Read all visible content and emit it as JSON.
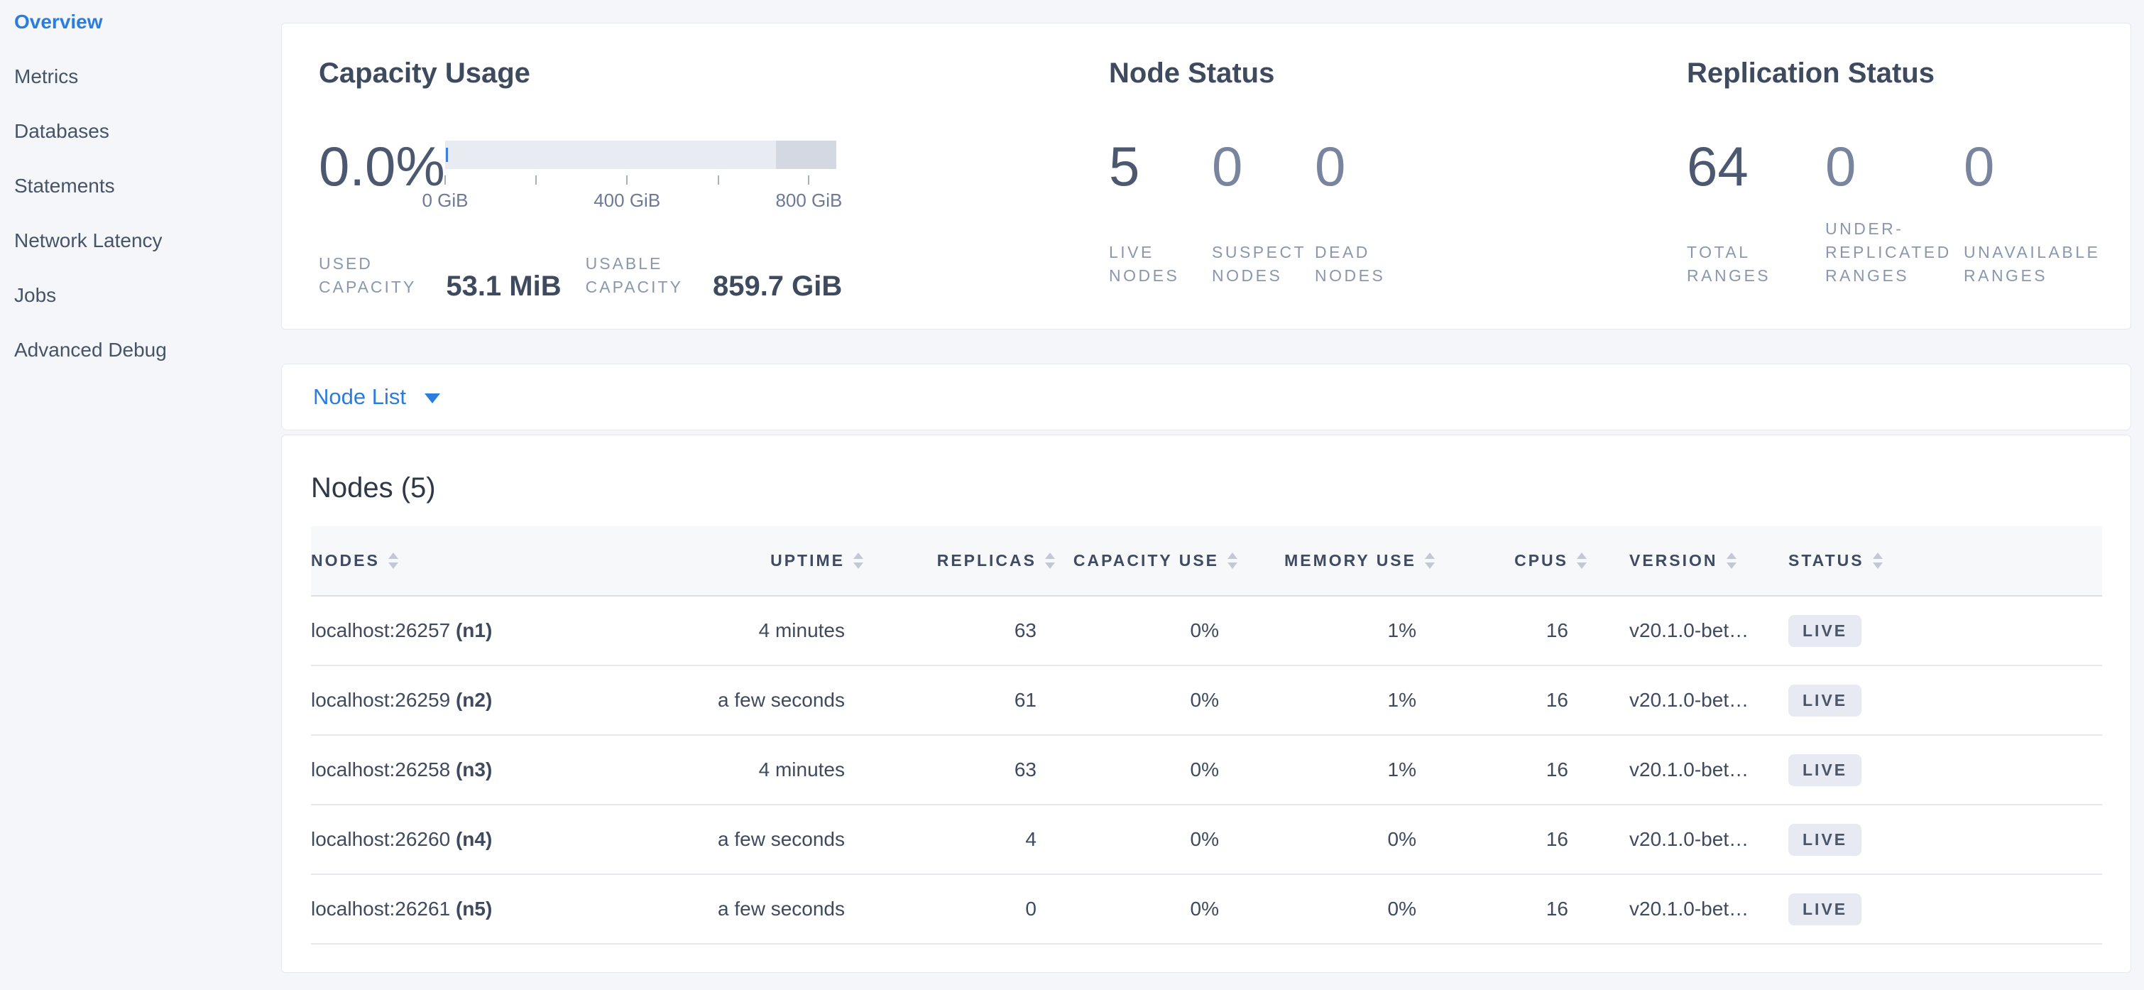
{
  "colors": {
    "accent_blue": "#2b7ce0",
    "page_bg": "#f4f6fa",
    "card_bg": "#ffffff",
    "dark_text": "#3e4a5e",
    "muted_number": "#79849e",
    "label_gray": "#8b97ad",
    "badge_bg": "#e7eaf2",
    "gauge_track": "#e8ebf1",
    "gauge_track_dark": "#d4d8e2",
    "gauge_used_marker": "#3e7ee0"
  },
  "sidebar": {
    "items": [
      {
        "label": "Overview",
        "active": true
      },
      {
        "label": "Metrics",
        "active": false
      },
      {
        "label": "Databases",
        "active": false
      },
      {
        "label": "Statements",
        "active": false
      },
      {
        "label": "Network Latency",
        "active": false
      },
      {
        "label": "Jobs",
        "active": false
      },
      {
        "label": "Advanced Debug",
        "active": false
      }
    ]
  },
  "summary": {
    "capacity_usage": {
      "title": "Capacity Usage",
      "percent": "0.0%",
      "gauge": {
        "ticks": [
          {
            "label": "0 GiB",
            "pos": 0
          },
          {
            "label": "",
            "pos": 23.3
          },
          {
            "label": "400 GiB",
            "pos": 46.5
          },
          {
            "label": "",
            "pos": 69.8
          },
          {
            "label": "800 GiB",
            "pos": 93
          }
        ],
        "dark_segment_start_pct": 84.5,
        "used_marker_pct": 0
      },
      "stats": [
        {
          "label_lines": [
            "USED",
            "CAPACITY"
          ],
          "value": "53.1 MiB"
        },
        {
          "label_lines": [
            "USABLE",
            "CAPACITY"
          ],
          "value": "859.7 GiB"
        }
      ]
    },
    "node_status": {
      "title": "Node Status",
      "metrics": [
        {
          "value": "5",
          "muted": false,
          "label_lines": [
            "LIVE",
            "NODES"
          ]
        },
        {
          "value": "0",
          "muted": true,
          "label_lines": [
            "SUSPECT",
            "NODES"
          ]
        },
        {
          "value": "0",
          "muted": true,
          "label_lines": [
            "DEAD",
            "NODES"
          ]
        }
      ]
    },
    "replication_status": {
      "title": "Replication Status",
      "metrics": [
        {
          "value": "64",
          "muted": false,
          "label_lines": [
            "TOTAL",
            "RANGES"
          ]
        },
        {
          "value": "0",
          "muted": true,
          "label_lines": [
            "UNDER-",
            "REPLICATED",
            "RANGES"
          ]
        },
        {
          "value": "0",
          "muted": true,
          "label_lines": [
            "UNAVAILABLE",
            "RANGES"
          ]
        }
      ]
    }
  },
  "node_list_selector": {
    "label": "Node List"
  },
  "nodes_table": {
    "title": "Nodes (5)",
    "columns": [
      {
        "key": "address",
        "label": "NODES",
        "align": "left"
      },
      {
        "key": "uptime",
        "label": "UPTIME",
        "align": "right"
      },
      {
        "key": "replicas",
        "label": "REPLICAS",
        "align": "right"
      },
      {
        "key": "capacity_use",
        "label": "CAPACITY USE",
        "align": "right"
      },
      {
        "key": "memory_use",
        "label": "MEMORY USE",
        "align": "right"
      },
      {
        "key": "cpus",
        "label": "CPUS",
        "align": "right"
      },
      {
        "key": "version",
        "label": "VERSION",
        "align": "left"
      },
      {
        "key": "status",
        "label": "STATUS",
        "align": "left"
      }
    ],
    "rows": [
      {
        "address": "localhost:26257",
        "node_id": "(n1)",
        "uptime": "4 minutes",
        "replicas": "63",
        "capacity_use": "0%",
        "memory_use": "1%",
        "cpus": "16",
        "version": "v20.1.0-bet…",
        "status": "LIVE"
      },
      {
        "address": "localhost:26259",
        "node_id": "(n2)",
        "uptime": "a few seconds",
        "replicas": "61",
        "capacity_use": "0%",
        "memory_use": "1%",
        "cpus": "16",
        "version": "v20.1.0-bet…",
        "status": "LIVE"
      },
      {
        "address": "localhost:26258",
        "node_id": "(n3)",
        "uptime": "4 minutes",
        "replicas": "63",
        "capacity_use": "0%",
        "memory_use": "1%",
        "cpus": "16",
        "version": "v20.1.0-bet…",
        "status": "LIVE"
      },
      {
        "address": "localhost:26260",
        "node_id": "(n4)",
        "uptime": "a few seconds",
        "replicas": "4",
        "capacity_use": "0%",
        "memory_use": "0%",
        "cpus": "16",
        "version": "v20.1.0-bet…",
        "status": "LIVE"
      },
      {
        "address": "localhost:26261",
        "node_id": "(n5)",
        "uptime": "a few seconds",
        "replicas": "0",
        "capacity_use": "0%",
        "memory_use": "0%",
        "cpus": "16",
        "version": "v20.1.0-bet…",
        "status": "LIVE"
      }
    ]
  }
}
